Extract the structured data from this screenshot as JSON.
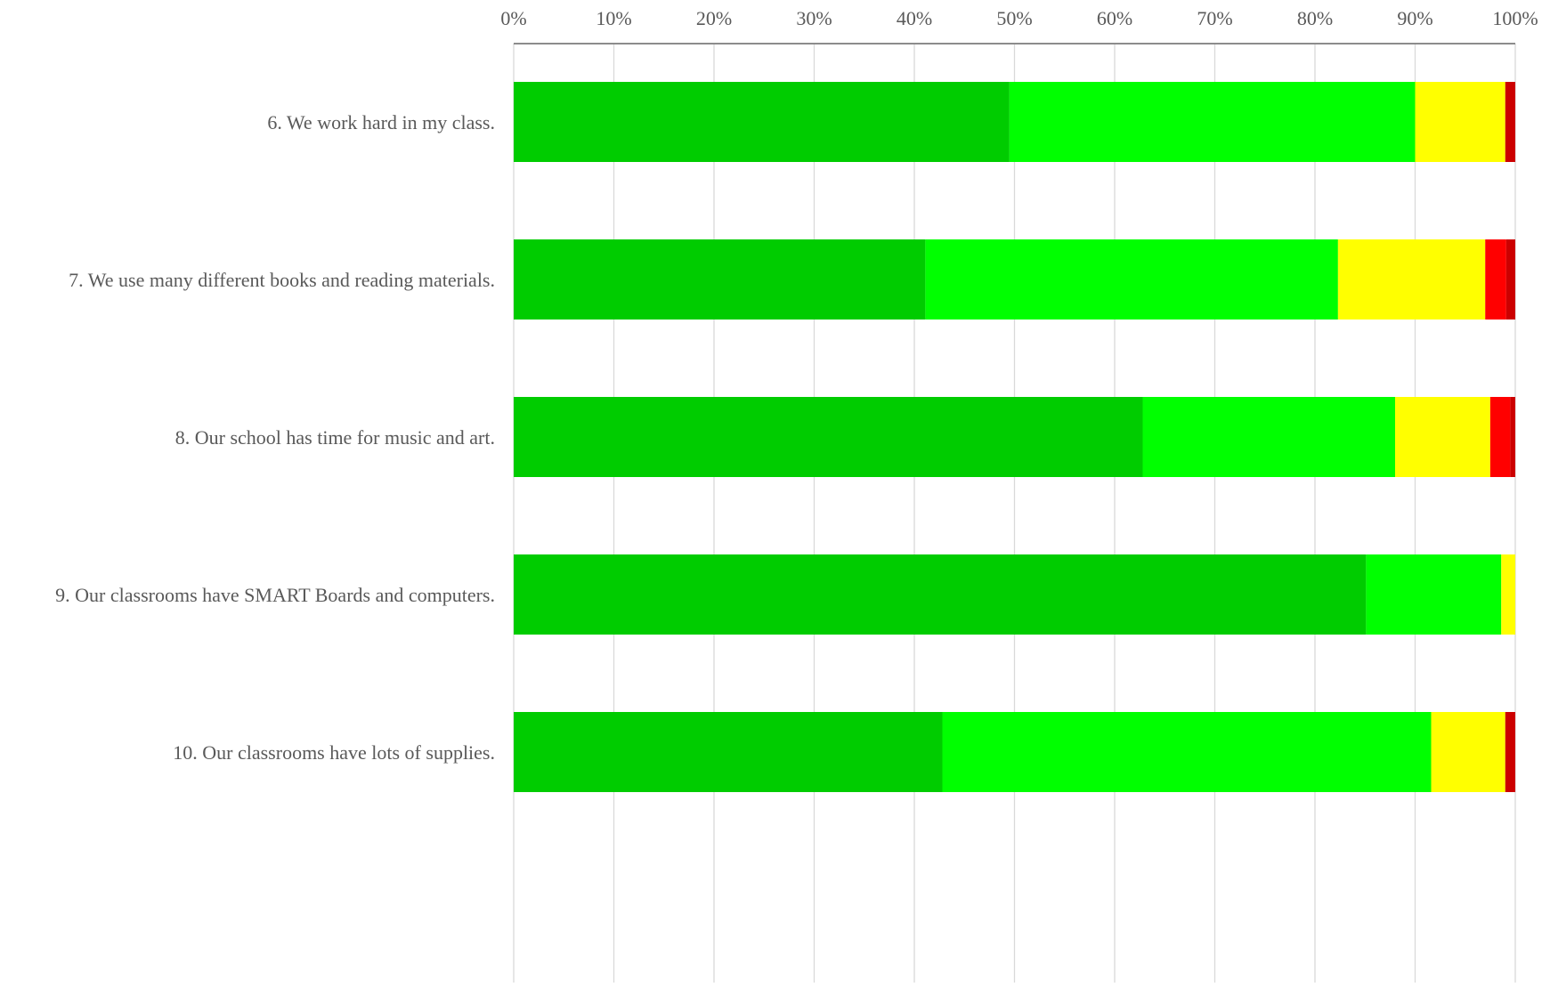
{
  "chart_data": {
    "type": "bar",
    "orientation": "horizontal",
    "stacked": true,
    "title": "",
    "xlabel": "",
    "ylabel": "",
    "xlim": [
      0,
      100
    ],
    "grid": true,
    "legend": "none",
    "x_ticks": [
      "0%",
      "10%",
      "20%",
      "30%",
      "40%",
      "50%",
      "60%",
      "70%",
      "80%",
      "90%",
      "100%"
    ],
    "x_tick_values": [
      0,
      10,
      20,
      30,
      40,
      50,
      60,
      70,
      80,
      90,
      100
    ],
    "categories": [
      "6. We work hard in my class.",
      "7. We use many different books and reading materials.",
      "8. Our school has time for music and art.",
      "9. Our classrooms have SMART Boards and computers.",
      "10. Our classrooms have lots of supplies."
    ],
    "series": [
      {
        "color": "#00cc00",
        "values": [
          49.5,
          41.1,
          62.8,
          85.1,
          42.8
        ]
      },
      {
        "color": "#00ff00",
        "values": [
          40.5,
          41.2,
          25.2,
          13.5,
          48.8
        ]
      },
      {
        "color": "#ffff00",
        "values": [
          9.0,
          14.7,
          9.5,
          1.4,
          7.4
        ]
      },
      {
        "color": "#ff0000",
        "values": [
          0,
          2.1,
          2.0,
          0,
          0
        ]
      },
      {
        "color": "#cc0000",
        "values": [
          1.0,
          0.9,
          0.5,
          0,
          1.0
        ]
      }
    ]
  }
}
